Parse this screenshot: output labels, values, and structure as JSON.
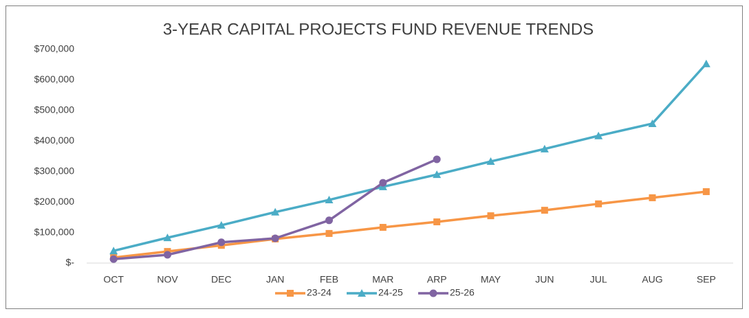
{
  "chart_data": {
    "type": "line",
    "title": "3-YEAR CAPITAL PROJECTS FUND REVENUE TRENDS",
    "categories": [
      "OCT",
      "NOV",
      "DEC",
      "JAN",
      "FEB",
      "MAR",
      "ARP",
      "MAY",
      "JUN",
      "JUL",
      "AUG",
      "SEP"
    ],
    "series": [
      {
        "name": "23-24",
        "color": "#f79646",
        "marker": "square",
        "values": [
          18000,
          38000,
          58000,
          79000,
          97000,
          117000,
          135000,
          155000,
          173000,
          194000,
          214000,
          234000
        ]
      },
      {
        "name": "24-25",
        "color": "#4bacc6",
        "marker": "triangle",
        "values": [
          40000,
          83000,
          124000,
          167000,
          207000,
          250000,
          290000,
          333000,
          374000,
          417000,
          457000,
          653000
        ]
      },
      {
        "name": "25-26",
        "color": "#8064a2",
        "marker": "circle",
        "values": [
          13000,
          27000,
          68000,
          81000,
          140000,
          263000,
          340000,
          null,
          null,
          null,
          null,
          null
        ]
      }
    ],
    "ylim": [
      0,
      700000
    ],
    "yticks": [
      {
        "value": 0,
        "label": "$-"
      },
      {
        "value": 100000,
        "label": "$100,000"
      },
      {
        "value": 200000,
        "label": "$200,000"
      },
      {
        "value": 300000,
        "label": "$300,000"
      },
      {
        "value": 400000,
        "label": "$400,000"
      },
      {
        "value": 500000,
        "label": "$500,000"
      },
      {
        "value": 600000,
        "label": "$600,000"
      },
      {
        "value": 700000,
        "label": "$700,000"
      }
    ],
    "grid": false,
    "legend": "bottom"
  }
}
